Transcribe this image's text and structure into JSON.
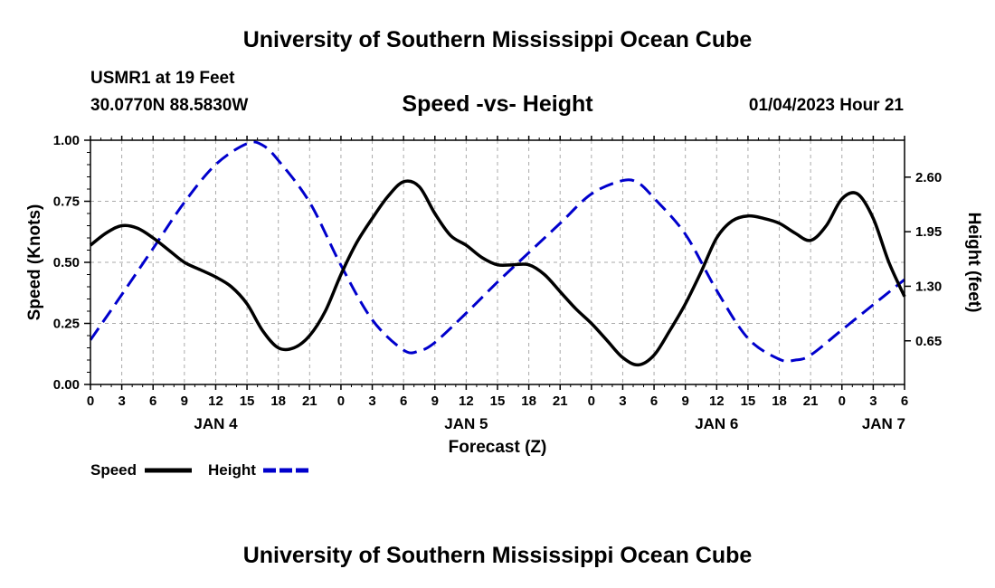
{
  "header": {
    "title": "University of Southern Mississippi Ocean Cube",
    "station": "USMR1 at 19 Feet",
    "coordinates": "30.0770N  88.5830W",
    "datetime": "01/04/2023 Hour 21"
  },
  "footer": {
    "title": "University of Southern Mississippi Ocean Cube"
  },
  "chart_data": {
    "type": "line",
    "title": "Speed -vs- Height",
    "xlabel": "Forecast (Z)",
    "ylabel": "Speed (Knots)",
    "y2label": "Height (feet)",
    "x_unit": "hours since JAN 4 00Z",
    "xlim": [
      0,
      78
    ],
    "x_ticks": [
      0,
      3,
      6,
      9,
      12,
      15,
      18,
      21,
      24,
      27,
      30,
      33,
      36,
      39,
      42,
      45,
      48,
      51,
      54,
      57,
      60,
      63,
      66,
      69,
      72,
      75,
      78
    ],
    "x_tick_labels": [
      "0",
      "3",
      "6",
      "9",
      "12",
      "15",
      "18",
      "21",
      "0",
      "3",
      "6",
      "9",
      "12",
      "15",
      "18",
      "21",
      "0",
      "3",
      "6",
      "9",
      "12",
      "15",
      "18",
      "21",
      "0",
      "3",
      "6"
    ],
    "day_labels": [
      {
        "x": 12,
        "label": "JAN 4"
      },
      {
        "x": 36,
        "label": "JAN 5"
      },
      {
        "x": 60,
        "label": "JAN 6"
      },
      {
        "x": 76,
        "label": "JAN 7"
      }
    ],
    "ylim": [
      0,
      1.0
    ],
    "y_ticks": [
      0,
      0.25,
      0.5,
      0.75,
      1.0
    ],
    "y_tick_labels": [
      "0.00",
      "0.25",
      "0.50",
      "0.75",
      "1.00"
    ],
    "y2lim": [
      0.13,
      3.04
    ],
    "y2_ticks": [
      0.65,
      1.3,
      1.95,
      2.6
    ],
    "y2_tick_labels": [
      "0.65",
      "1.30",
      "1.95",
      "2.60"
    ],
    "grid": true,
    "legend_position": "bottom-left",
    "series": [
      {
        "name": "Speed",
        "axis": "left",
        "color": "#000000",
        "dash": "solid",
        "points": [
          [
            0,
            0.57
          ],
          [
            1.5,
            0.62
          ],
          [
            3,
            0.65
          ],
          [
            4.5,
            0.64
          ],
          [
            6,
            0.6
          ],
          [
            7.5,
            0.55
          ],
          [
            9,
            0.5
          ],
          [
            10.5,
            0.47
          ],
          [
            12,
            0.44
          ],
          [
            13.5,
            0.4
          ],
          [
            15,
            0.33
          ],
          [
            16.5,
            0.22
          ],
          [
            18,
            0.15
          ],
          [
            19.5,
            0.15
          ],
          [
            21,
            0.2
          ],
          [
            22.5,
            0.3
          ],
          [
            24,
            0.45
          ],
          [
            25.5,
            0.58
          ],
          [
            27,
            0.68
          ],
          [
            28.5,
            0.77
          ],
          [
            30,
            0.83
          ],
          [
            31.5,
            0.81
          ],
          [
            33,
            0.7
          ],
          [
            34.5,
            0.61
          ],
          [
            36,
            0.57
          ],
          [
            37.5,
            0.52
          ],
          [
            39,
            0.49
          ],
          [
            40.5,
            0.49
          ],
          [
            42,
            0.49
          ],
          [
            43.5,
            0.45
          ],
          [
            45,
            0.38
          ],
          [
            46.5,
            0.31
          ],
          [
            48,
            0.25
          ],
          [
            49.5,
            0.18
          ],
          [
            51,
            0.11
          ],
          [
            52.5,
            0.08
          ],
          [
            54,
            0.12
          ],
          [
            55.5,
            0.22
          ],
          [
            57,
            0.33
          ],
          [
            58.5,
            0.46
          ],
          [
            60,
            0.6
          ],
          [
            61.5,
            0.67
          ],
          [
            63,
            0.69
          ],
          [
            64.5,
            0.68
          ],
          [
            66,
            0.66
          ],
          [
            67.5,
            0.62
          ],
          [
            69,
            0.59
          ],
          [
            70.5,
            0.65
          ],
          [
            72,
            0.76
          ],
          [
            73.5,
            0.78
          ],
          [
            75,
            0.68
          ],
          [
            76.5,
            0.5
          ],
          [
            78,
            0.36
          ]
        ]
      },
      {
        "name": "Height",
        "axis": "right",
        "color": "#0000cc",
        "dash": "dashed",
        "points": [
          [
            0,
            0.66
          ],
          [
            3,
            1.2
          ],
          [
            6,
            1.75
          ],
          [
            9,
            2.3
          ],
          [
            12,
            2.75
          ],
          [
            15,
            3.0
          ],
          [
            16.5,
            2.98
          ],
          [
            18,
            2.8
          ],
          [
            21,
            2.3
          ],
          [
            24,
            1.55
          ],
          [
            27,
            0.9
          ],
          [
            30,
            0.54
          ],
          [
            31.5,
            0.53
          ],
          [
            33,
            0.63
          ],
          [
            36,
            0.98
          ],
          [
            39,
            1.35
          ],
          [
            42,
            1.7
          ],
          [
            45,
            2.05
          ],
          [
            48,
            2.4
          ],
          [
            51,
            2.56
          ],
          [
            52.5,
            2.53
          ],
          [
            54,
            2.35
          ],
          [
            57,
            1.92
          ],
          [
            60,
            1.25
          ],
          [
            63,
            0.68
          ],
          [
            66,
            0.43
          ],
          [
            67.5,
            0.42
          ],
          [
            69,
            0.48
          ],
          [
            72,
            0.78
          ],
          [
            75,
            1.08
          ],
          [
            78,
            1.38
          ]
        ]
      }
    ]
  }
}
